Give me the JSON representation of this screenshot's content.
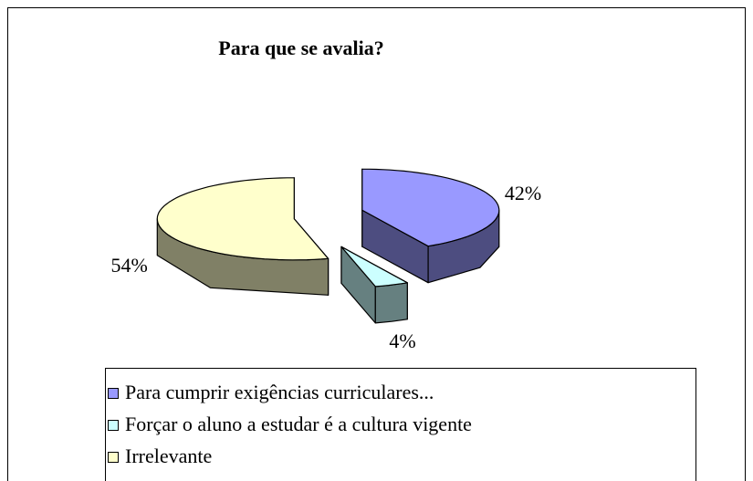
{
  "chart_data": {
    "type": "pie3d",
    "title": "Para que se avalia?",
    "categories": [
      "Para cumprir exigências curriculares...",
      "Forçar o aluno a estudar é a cultura vigente",
      "Irrelevante"
    ],
    "values": [
      42,
      4,
      54
    ],
    "value_labels": [
      "42%",
      "4%",
      "54%"
    ],
    "colors": [
      "#9999ff",
      "#ccffff",
      "#ffffcc"
    ],
    "legend": "bottom"
  }
}
